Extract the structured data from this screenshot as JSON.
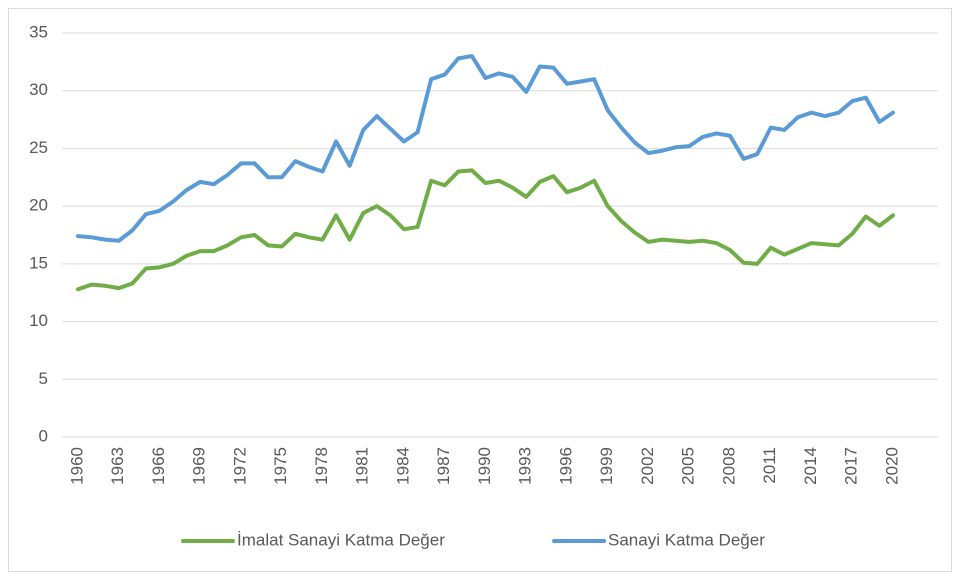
{
  "chart_data": {
    "type": "line",
    "x": [
      1960,
      1961,
      1962,
      1963,
      1964,
      1965,
      1966,
      1967,
      1968,
      1969,
      1970,
      1971,
      1972,
      1973,
      1974,
      1975,
      1976,
      1977,
      1978,
      1979,
      1980,
      1981,
      1982,
      1983,
      1984,
      1985,
      1986,
      1987,
      1988,
      1989,
      1990,
      1991,
      1992,
      1993,
      1994,
      1995,
      1996,
      1997,
      1998,
      1999,
      2000,
      2001,
      2002,
      2003,
      2004,
      2005,
      2006,
      2007,
      2008,
      2009,
      2010,
      2011,
      2012,
      2013,
      2014,
      2015,
      2016,
      2017,
      2018,
      2019,
      2020
    ],
    "series": [
      {
        "name": "İmalat Sanayi Katma Değer",
        "color": "#70ad47",
        "values": [
          12.8,
          13.2,
          13.1,
          12.9,
          13.3,
          14.6,
          14.7,
          15.0,
          15.7,
          16.1,
          16.1,
          16.6,
          17.3,
          17.5,
          16.6,
          16.5,
          17.6,
          17.3,
          17.1,
          19.2,
          17.1,
          19.4,
          20.0,
          19.2,
          18.0,
          18.2,
          22.2,
          21.8,
          23.0,
          23.1,
          22.0,
          22.2,
          21.6,
          20.8,
          22.1,
          22.6,
          21.2,
          21.6,
          22.2,
          20.0,
          18.7,
          17.7,
          16.9,
          17.1,
          17.0,
          16.9,
          17.0,
          16.8,
          16.2,
          15.1,
          15.0,
          16.4,
          15.8,
          16.3,
          16.8,
          16.7,
          16.6,
          17.6,
          19.1,
          18.3,
          19.2
        ]
      },
      {
        "name": "Sanayi Katma Değer",
        "color": "#5b9bd5",
        "values": [
          17.4,
          17.3,
          17.1,
          17.0,
          17.9,
          19.3,
          19.6,
          20.4,
          21.4,
          22.1,
          21.9,
          22.7,
          23.7,
          23.7,
          22.5,
          22.5,
          23.9,
          23.4,
          23.0,
          25.6,
          23.5,
          26.6,
          27.8,
          26.7,
          25.6,
          26.4,
          31.0,
          31.4,
          32.8,
          33.0,
          31.1,
          31.5,
          31.2,
          29.9,
          32.1,
          32.0,
          30.6,
          30.8,
          31.0,
          28.3,
          26.8,
          25.5,
          24.6,
          24.8,
          25.1,
          25.2,
          26.0,
          26.3,
          26.1,
          24.1,
          24.5,
          26.8,
          26.6,
          27.7,
          28.1,
          27.8,
          28.1,
          29.1,
          29.4,
          27.3,
          28.1
        ]
      }
    ],
    "xlim": [
      1960,
      2020
    ],
    "xticks": [
      1960,
      1963,
      1966,
      1969,
      1972,
      1975,
      1978,
      1981,
      1984,
      1987,
      1990,
      1993,
      1996,
      1999,
      2002,
      2005,
      2008,
      2011,
      2014,
      2017,
      2020
    ],
    "ylim": [
      0,
      35
    ],
    "yticks": [
      0,
      5,
      10,
      15,
      20,
      25,
      30,
      35
    ],
    "grid": true,
    "legend": "bottom"
  }
}
